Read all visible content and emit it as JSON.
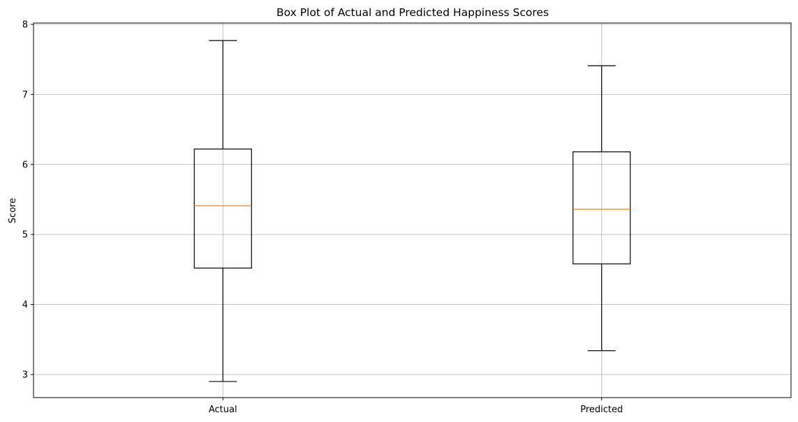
{
  "chart_data": {
    "type": "box",
    "title": "Box Plot of Actual and Predicted Happiness Scores",
    "xlabel": "",
    "ylabel": "Score",
    "ylim": [
      2.67,
      8.02
    ],
    "yticks": [
      3,
      4,
      5,
      6,
      7,
      8
    ],
    "grid": true,
    "categories": [
      "Actual",
      "Predicted"
    ],
    "boxes": [
      {
        "category": "Actual",
        "whisker_low": 2.9,
        "q1": 4.52,
        "median": 5.41,
        "q3": 6.22,
        "whisker_high": 7.77
      },
      {
        "category": "Predicted",
        "whisker_low": 3.34,
        "q1": 4.58,
        "median": 5.36,
        "q3": 6.18,
        "whisker_high": 7.41
      }
    ],
    "colors": {
      "box": "#000000",
      "median": "#ff7f0e",
      "grid": "#b0b0b0"
    }
  }
}
